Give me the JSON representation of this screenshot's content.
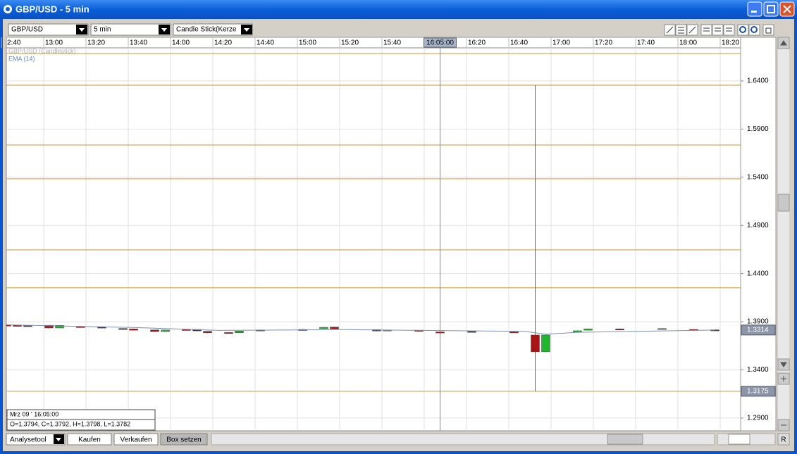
{
  "window": {
    "title": "GBP/USD - 5 min"
  },
  "toolbar": {
    "symbol": "GBP/USD",
    "interval": "5 min",
    "chart_style": "Candle Stick(Kerze"
  },
  "legend": [
    "GBP/USD (Candlestick)",
    "EMA (14)"
  ],
  "crosshair_label": "16:05:00",
  "info": {
    "date": "Mrz 09 ' 16:05:00",
    "ohlc": "O=1.3794, C=1.3792, H=1.3798, L=1.3782"
  },
  "price_tags": [
    "1.3314",
    "1.3175"
  ],
  "bottom_bar": {
    "buttons": [
      "Analysetool",
      "Kaufen",
      "Verkaufen",
      "Box setzen"
    ],
    "right_button": "R"
  },
  "chart_data": {
    "type": "candlestick",
    "categories": [
      "2:40",
      "13:00",
      "13:20",
      "13:40",
      "14:00",
      "14:20",
      "14:40",
      "15:00",
      "15:20",
      "15:40",
      null,
      "16:20",
      "16:40",
      "17:00",
      "17:20",
      "17:40",
      "18:00",
      "18:20"
    ],
    "candles": {
      "x": [
        "12:40",
        "12:45",
        "12:50",
        "13:00",
        "13:05",
        "13:15",
        "13:25",
        "13:35",
        "13:40",
        "13:50",
        "13:55",
        "14:05",
        "14:10",
        "14:15",
        "14:25",
        "14:30",
        "14:40",
        "15:00",
        "15:10",
        "15:15",
        "15:35",
        "15:40",
        "15:55",
        "16:05",
        "16:20",
        "16:40",
        "16:50",
        "16:55",
        "17:10",
        "17:15",
        "17:30",
        "17:50",
        "18:05",
        "18:15"
      ],
      "open": [
        1.3866,
        1.3863,
        1.386,
        1.3863,
        1.3835,
        1.385,
        1.3848,
        1.383,
        1.3826,
        1.3815,
        1.3798,
        1.382,
        1.382,
        1.38,
        1.3788,
        1.3786,
        1.3815,
        1.382,
        1.3828,
        1.3845,
        1.3818,
        1.3804,
        1.3812,
        1.3794,
        1.38,
        1.3795,
        1.3762,
        1.3587,
        1.379,
        1.3812,
        1.3826,
        1.3828,
        1.382,
        1.3816
      ],
      "high": [
        1.387,
        1.3866,
        1.3863,
        1.3866,
        1.3866,
        1.3852,
        1.385,
        1.3832,
        1.3828,
        1.3817,
        1.3816,
        1.3822,
        1.3822,
        1.3802,
        1.379,
        1.3806,
        1.3818,
        1.3824,
        1.3845,
        1.3847,
        1.382,
        1.3818,
        1.3814,
        1.3798,
        1.3803,
        1.3798,
        1.6356,
        1.3765,
        1.381,
        1.383,
        1.3829,
        1.3832,
        1.3824,
        1.3819
      ],
      "low": [
        1.386,
        1.3858,
        1.3855,
        1.383,
        1.3832,
        1.3845,
        1.383,
        1.3822,
        1.3808,
        1.3795,
        1.3796,
        1.3814,
        1.38,
        1.378,
        1.3782,
        1.3784,
        1.381,
        1.3816,
        1.3826,
        1.3822,
        1.38,
        1.3802,
        1.3796,
        1.3782,
        1.3795,
        1.3788,
        1.3178,
        1.3585,
        1.3788,
        1.381,
        1.3822,
        1.3824,
        1.3815,
        1.3812
      ],
      "close": [
        1.3863,
        1.386,
        1.3858,
        1.3835,
        1.3862,
        1.3848,
        1.3834,
        1.3826,
        1.3812,
        1.3798,
        1.3814,
        1.3817,
        1.3805,
        1.3785,
        1.3786,
        1.3804,
        1.3812,
        1.3818,
        1.3842,
        1.3826,
        1.3804,
        1.3815,
        1.38,
        1.3792,
        1.3798,
        1.3791,
        1.3587,
        1.3762,
        1.3806,
        1.3826,
        1.3824,
        1.383,
        1.3818,
        1.3814
      ]
    },
    "up_color": "#22b52e",
    "down_color": "#a51515",
    "ema": {
      "color": "#7a8fb0",
      "x": [
        "12:40",
        "13:40",
        "14:20",
        "15:20",
        "16:45",
        "16:55",
        "17:10",
        "18:15"
      ],
      "values": [
        1.3868,
        1.384,
        1.381,
        1.3818,
        1.38,
        1.377,
        1.379,
        1.3814
      ]
    },
    "hlines": {
      "color": "#c89a28",
      "values": [
        1.6685,
        1.6356,
        1.5735,
        1.5384,
        1.4646,
        1.4252,
        1.3178
      ]
    },
    "ylim": [
      1.2768,
      1.6743
    ],
    "yticks": [
      {
        "value": 1.29,
        "label": "1.2900"
      },
      {
        "value": 1.34,
        "label": "1.3400"
      },
      {
        "value": 1.39,
        "label": "1.3900"
      },
      {
        "value": 1.44,
        "label": "1.4400"
      },
      {
        "value": 1.49,
        "label": "1.4900"
      },
      {
        "value": 1.54,
        "label": "1.5400"
      },
      {
        "value": 1.59,
        "label": "1.5900"
      },
      {
        "value": 1.64,
        "label": "1.6400"
      }
    ],
    "grid": true
  }
}
